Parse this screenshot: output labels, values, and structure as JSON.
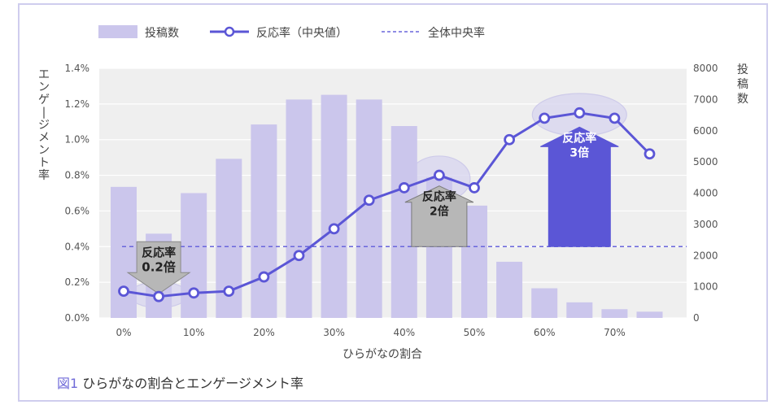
{
  "caption": {
    "figure_label": "図1",
    "text": "ひらがなの割合とエンゲージメント率"
  },
  "colors": {
    "bar": "#cbc6ec",
    "line": "#5b56d6",
    "dashed": "#6a66dc",
    "plot_bg": "#efefef",
    "grid": "#ffffff",
    "callout_gray": "#b7b7b7",
    "callout_blue": "#5b56d6",
    "highlight": "#d8d5f0"
  },
  "chart_data": {
    "type": "bar",
    "title": "",
    "xlabel": "ひらがなの割合",
    "ylabel_left": "エンゲージメント率",
    "ylabel_right": "投稿数",
    "x_ticks": [
      "0%",
      "10%",
      "20%",
      "30%",
      "40%",
      "50%",
      "60%",
      "70%"
    ],
    "x": [
      0,
      5,
      10,
      15,
      20,
      25,
      30,
      35,
      40,
      45,
      50,
      55,
      60,
      65,
      70,
      75
    ],
    "ylim_left": [
      0,
      1.4
    ],
    "y_ticks_left": [
      "0.0%",
      "0.2%",
      "0.4%",
      "0.6%",
      "0.8%",
      "1.0%",
      "1.2%",
      "1.4%"
    ],
    "ylim_right": [
      0,
      8000
    ],
    "y_ticks_right": [
      "0",
      "1000",
      "2000",
      "3000",
      "4000",
      "5000",
      "6000",
      "7000",
      "8000"
    ],
    "legend": {
      "placement": "top-left",
      "bar": "投稿数",
      "line": "反応率（中央値）",
      "dashed": "全体中央率"
    },
    "series": [
      {
        "name": "投稿数",
        "type": "bar",
        "axis": "right",
        "values": [
          4200,
          2700,
          4000,
          5100,
          6200,
          7000,
          7150,
          7000,
          6150,
          4500,
          3600,
          1800,
          950,
          500,
          280,
          200
        ]
      },
      {
        "name": "反応率（中央値）",
        "type": "line",
        "axis": "left",
        "values": [
          0.15,
          0.12,
          0.14,
          0.15,
          0.23,
          0.35,
          0.5,
          0.66,
          0.73,
          0.8,
          0.73,
          1.0,
          1.12,
          1.15,
          1.12,
          0.92
        ]
      },
      {
        "name": "全体中央率",
        "type": "hline",
        "axis": "left",
        "value": 0.4
      }
    ],
    "annotations": [
      {
        "label": "反応率",
        "value": "0.2倍",
        "direction": "down",
        "x": 5
      },
      {
        "label": "反応率",
        "value": "2倍",
        "direction": "up",
        "x": 45
      },
      {
        "label": "反応率",
        "value": "3倍",
        "direction": "up",
        "x": 65
      }
    ]
  }
}
